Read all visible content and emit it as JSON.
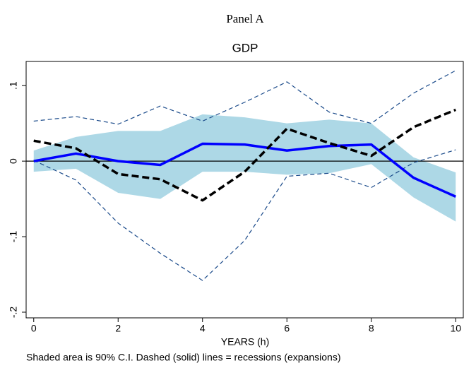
{
  "chart_data": {
    "type": "line",
    "panel": "Panel A",
    "title": "GDP",
    "x_label": "YEARS (h)",
    "note": "Shaded area is 90% C.I. Dashed (solid) lines = recessions (expansions)",
    "x": [
      0,
      1,
      2,
      3,
      4,
      5,
      6,
      7,
      8,
      9,
      10
    ],
    "xlim": [
      -0.18,
      10.18
    ],
    "xticks": [
      0,
      2,
      4,
      6,
      8,
      10
    ],
    "ylim": [
      -0.2075,
      0.132
    ],
    "yticks": [
      {
        "value": 0.1,
        "label": ".1"
      },
      0,
      {
        "value": -0.1,
        "label": "-.1"
      },
      {
        "value": -0.2,
        "label": "-.2"
      }
    ],
    "hline": 0,
    "band": {
      "color": "#add8e6",
      "upper": [
        0.014,
        0.032,
        0.04,
        0.04,
        0.062,
        0.058,
        0.05,
        0.055,
        0.05,
        0.005,
        -0.015
      ],
      "lower": [
        -0.014,
        -0.01,
        -0.042,
        -0.05,
        -0.014,
        -0.014,
        -0.018,
        -0.016,
        -0.004,
        -0.048,
        -0.08
      ]
    },
    "series": [
      {
        "color": "#1a4a8a",
        "dashed": true,
        "width": 1.2,
        "values": [
          0.053,
          0.059,
          0.049,
          0.073,
          0.053,
          0.078,
          0.105,
          0.065,
          0.05,
          0.09,
          0.12
        ]
      },
      {
        "color": "#1a4a8a",
        "dashed": true,
        "width": 1.2,
        "values": [
          0.001,
          -0.025,
          -0.082,
          -0.122,
          -0.158,
          -0.105,
          -0.02,
          -0.016,
          -0.035,
          -0.002,
          0.015
        ]
      },
      {
        "color": "#0000ff",
        "dashed": false,
        "width": 3.5,
        "values": [
          0,
          0.01,
          0,
          -0.005,
          0.023,
          0.022,
          0.014,
          0.02,
          0.022,
          -0.022,
          -0.047
        ]
      },
      {
        "color": "#000000",
        "dashed": true,
        "width": 3.5,
        "values": [
          0.027,
          0.017,
          -0.017,
          -0.024,
          -0.052,
          -0.014,
          0.043,
          0.024,
          0.007,
          0.045,
          0.068
        ]
      }
    ]
  }
}
